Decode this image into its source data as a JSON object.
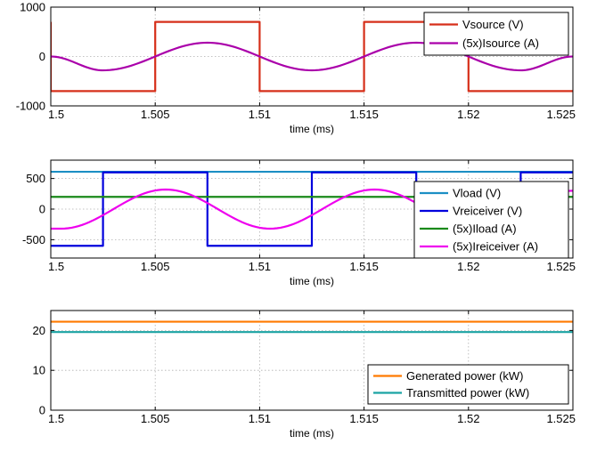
{
  "chart_data": [
    {
      "type": "line",
      "xlabel": "time (ms)",
      "xlim": [
        1.5,
        1.525
      ],
      "xticks": [
        "1.5",
        "1.505",
        "1.51",
        "1.515",
        "1.52",
        "1.525"
      ],
      "ylim": [
        -1000,
        1000
      ],
      "yticks": [
        "-1000",
        "0",
        "1000"
      ],
      "grid": true,
      "legend_position": "top-right",
      "series": [
        {
          "name": "Vsource (V)",
          "color": "#d62f1a",
          "x": [
            1.5,
            1.5,
            1.505,
            1.505,
            1.51,
            1.51,
            1.515,
            1.515,
            1.52,
            1.52,
            1.525
          ],
          "y": [
            700,
            -700,
            -700,
            700,
            700,
            -700,
            -700,
            700,
            700,
            -700,
            -700
          ]
        },
        {
          "name": "(5x)Isource (A)",
          "color": "#aa00aa",
          "x": [
            1.5,
            1.5025,
            1.5075,
            1.5125,
            1.5175,
            1.5225,
            1.525
          ],
          "y": [
            0,
            -280,
            280,
            -280,
            280,
            -280,
            0
          ]
        }
      ]
    },
    {
      "type": "line",
      "xlabel": "time (ms)",
      "xlim": [
        1.5,
        1.525
      ],
      "xticks": [
        "1.5",
        "1.505",
        "1.51",
        "1.515",
        "1.52",
        "1.525"
      ],
      "ylim": [
        -800,
        800
      ],
      "yticks": [
        "-500",
        "0",
        "500"
      ],
      "grid": true,
      "legend_position": "right",
      "series": [
        {
          "name": "Vload (V)",
          "color": "#1c8fc4",
          "x": [
            1.5,
            1.525
          ],
          "y": [
            610,
            610
          ]
        },
        {
          "name": "Vreiceiver (V)",
          "color": "#0000dd",
          "x": [
            1.5,
            1.5025,
            1.5025,
            1.5075,
            1.5075,
            1.5125,
            1.5125,
            1.5175,
            1.5175,
            1.5225,
            1.5225,
            1.525
          ],
          "y": [
            -600,
            -600,
            600,
            600,
            -600,
            -600,
            600,
            600,
            -600,
            -600,
            600,
            600
          ]
        },
        {
          "name": "(5x)Iload (A)",
          "color": "#1a8a1a",
          "x": [
            1.5,
            1.525
          ],
          "y": [
            200,
            200
          ]
        },
        {
          "name": "(5x)Ireiceiver (A)",
          "color": "#ee00ee",
          "x": [
            1.5,
            1.5005,
            1.5055,
            1.5105,
            1.5155,
            1.5205,
            1.525
          ],
          "y": [
            -320,
            -320,
            320,
            -320,
            320,
            -320,
            300
          ]
        }
      ]
    },
    {
      "type": "line",
      "xlabel": "time (ms)",
      "xlim": [
        1.5,
        1.525
      ],
      "xticks": [
        "1.5",
        "1.505",
        "1.51",
        "1.515",
        "1.52",
        "1.525"
      ],
      "ylim": [
        0,
        25
      ],
      "yticks": [
        "0",
        "10",
        "20"
      ],
      "grid": true,
      "legend_position": "bottom-right",
      "series": [
        {
          "name": "Generated power (kW)",
          "color": "#ff7a00",
          "x": [
            1.5,
            1.525
          ],
          "y": [
            22.2,
            22.2
          ]
        },
        {
          "name": "Transmitted power (kW)",
          "color": "#1aa3a3",
          "x": [
            1.5,
            1.525
          ],
          "y": [
            19.6,
            19.6
          ]
        }
      ]
    }
  ]
}
